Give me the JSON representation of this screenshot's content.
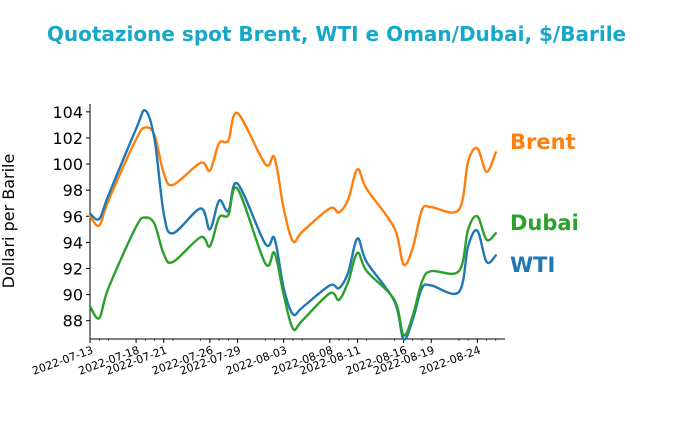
{
  "chart_data": {
    "type": "line",
    "title": "Quotazione spot Brent, WTI e Oman/Dubai, $/Barile",
    "xlabel": "",
    "ylabel": "Dollari per Barile",
    "ylim": [
      86.6,
      104.6
    ],
    "yticks": [
      88,
      90,
      92,
      94,
      96,
      98,
      100,
      102,
      104
    ],
    "xlim": [
      "2022-07-13",
      "2022-08-27"
    ],
    "xtick_labels": [
      "2022-07-13",
      "2022-07-18",
      "2022-07-21",
      "2022-07-26",
      "2022-07-29",
      "2022-08-03",
      "2022-08-08",
      "2022-08-11",
      "2022-08-16",
      "2022-08-19",
      "2022-08-24"
    ],
    "grid": false,
    "legend": "direct labels at line ends",
    "x": [
      "2022-07-13",
      "2022-07-14",
      "2022-07-15",
      "2022-07-18",
      "2022-07-19",
      "2022-07-20",
      "2022-07-21",
      "2022-07-22",
      "2022-07-25",
      "2022-07-26",
      "2022-07-27",
      "2022-07-28",
      "2022-07-29",
      "2022-08-01",
      "2022-08-02",
      "2022-08-03",
      "2022-08-04",
      "2022-08-05",
      "2022-08-08",
      "2022-08-09",
      "2022-08-10",
      "2022-08-11",
      "2022-08-12",
      "2022-08-15",
      "2022-08-16",
      "2022-08-17",
      "2022-08-18",
      "2022-08-19",
      "2022-08-22",
      "2022-08-23",
      "2022-08-24",
      "2022-08-25",
      "2022-08-26"
    ],
    "series": [
      {
        "name": "Brent",
        "color": "#ff7f0e",
        "values": [
          96.0,
          95.3,
          97.2,
          101.9,
          102.8,
          102.2,
          99.3,
          98.4,
          100.1,
          99.5,
          101.6,
          101.8,
          103.9,
          100.0,
          100.5,
          96.6,
          94.1,
          94.8,
          96.6,
          96.3,
          97.3,
          99.6,
          98.1,
          95.1,
          92.3,
          93.6,
          96.5,
          96.7,
          96.5,
          100.2,
          101.2,
          99.4,
          100.9
        ]
      },
      {
        "name": "WTI",
        "color": "#1f77b4",
        "values": [
          96.2,
          95.8,
          97.6,
          102.7,
          104.1,
          101.9,
          96.2,
          94.7,
          96.6,
          95.0,
          97.2,
          96.4,
          98.5,
          93.9,
          94.3,
          90.5,
          88.5,
          89.0,
          90.7,
          90.5,
          91.7,
          94.3,
          92.5,
          89.5,
          86.6,
          88.1,
          90.5,
          90.7,
          90.2,
          93.7,
          94.9,
          92.5,
          93.0
        ]
      },
      {
        "name": "Dubai",
        "color": "#2ca02c",
        "values": [
          89.1,
          88.2,
          90.5,
          95.2,
          95.9,
          95.4,
          93.1,
          92.5,
          94.4,
          93.7,
          95.9,
          96.1,
          98.1,
          92.4,
          93.2,
          90.0,
          87.4,
          88.0,
          90.1,
          89.6,
          91.0,
          93.2,
          91.8,
          89.6,
          86.9,
          88.4,
          91.0,
          91.8,
          91.8,
          95.0,
          96.0,
          94.2,
          94.7
        ]
      }
    ]
  }
}
